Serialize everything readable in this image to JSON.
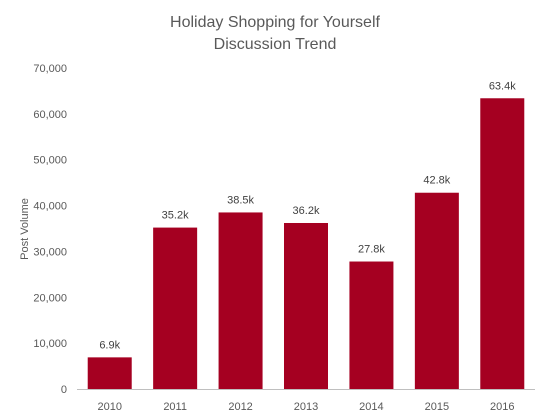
{
  "chart_data": {
    "type": "bar",
    "title_lines": [
      "Holiday Shopping for Yourself",
      "Discussion Trend"
    ],
    "xlabel": "",
    "ylabel": "Post Volume",
    "categories": [
      "2010",
      "2011",
      "2012",
      "2013",
      "2014",
      "2015",
      "2016"
    ],
    "values": [
      6900,
      35200,
      38500,
      36200,
      27800,
      42800,
      63400
    ],
    "data_labels": [
      "6.9k",
      "35.2k",
      "38.5k",
      "36.2k",
      "27.8k",
      "42.8k",
      "63.4k"
    ],
    "y_ticks": [
      0,
      10000,
      20000,
      30000,
      40000,
      50000,
      60000,
      70000
    ],
    "y_tick_labels": [
      "0",
      "10,000",
      "20,000",
      "30,000",
      "40,000",
      "50,000",
      "60,000",
      "70,000"
    ],
    "ylim": [
      0,
      70000
    ],
    "grid": false,
    "legend": "none",
    "colors": {
      "bar": "#A50021",
      "axis": "#BFBFBF",
      "text": "#595959"
    }
  }
}
